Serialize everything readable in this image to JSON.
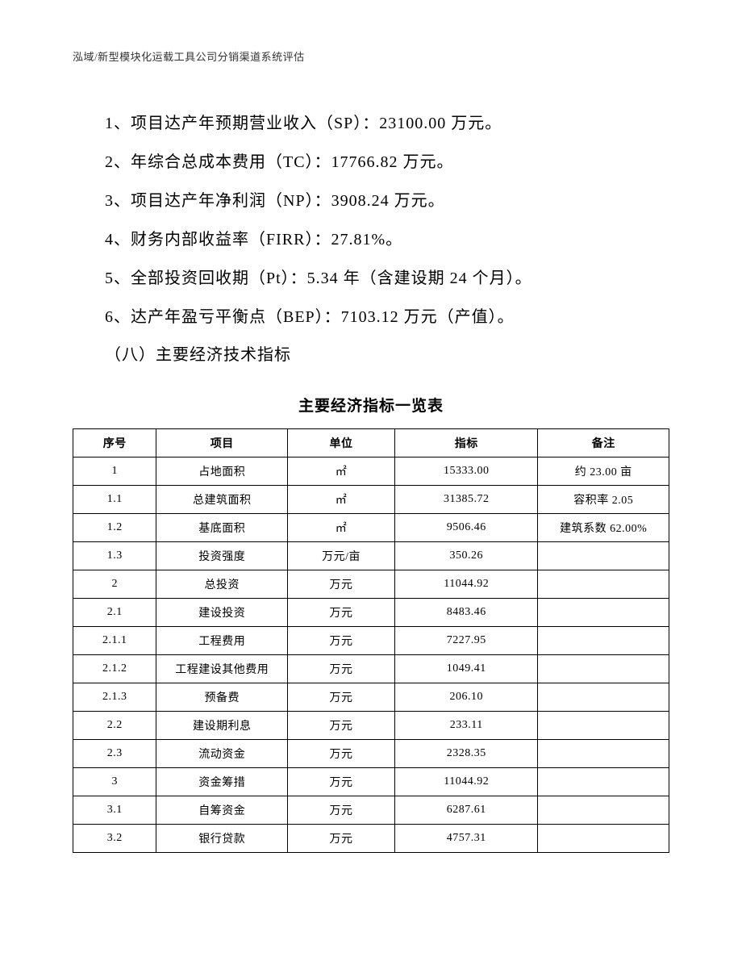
{
  "header": "泓域/新型模块化运载工具公司分销渠道系统评估",
  "paragraphs": {
    "p1": "1、项目达产年预期营业收入（SP）：23100.00 万元。",
    "p2": "2、年综合总成本费用（TC）：17766.82 万元。",
    "p3": "3、项目达产年净利润（NP）：3908.24 万元。",
    "p4": "4、财务内部收益率（FIRR）：27.81%。",
    "p5": "5、全部投资回收期（Pt）：5.34 年（含建设期 24 个月）。",
    "p6": "6、达产年盈亏平衡点（BEP）：7103.12 万元（产值）。"
  },
  "sectionHeading": "（八）主要经济技术指标",
  "tableTitle": "主要经济指标一览表",
  "table": {
    "headers": {
      "seq": "序号",
      "item": "项目",
      "unit": "单位",
      "value": "指标",
      "remark": "备注"
    },
    "rows": [
      {
        "seq": "1",
        "item": "占地面积",
        "unit": "㎡",
        "value": "15333.00",
        "remark": "约 23.00 亩"
      },
      {
        "seq": "1.1",
        "item": "总建筑面积",
        "unit": "㎡",
        "value": "31385.72",
        "remark": "容积率 2.05"
      },
      {
        "seq": "1.2",
        "item": "基底面积",
        "unit": "㎡",
        "value": "9506.46",
        "remark": "建筑系数 62.00%"
      },
      {
        "seq": "1.3",
        "item": "投资强度",
        "unit": "万元/亩",
        "value": "350.26",
        "remark": ""
      },
      {
        "seq": "2",
        "item": "总投资",
        "unit": "万元",
        "value": "11044.92",
        "remark": ""
      },
      {
        "seq": "2.1",
        "item": "建设投资",
        "unit": "万元",
        "value": "8483.46",
        "remark": ""
      },
      {
        "seq": "2.1.1",
        "item": "工程费用",
        "unit": "万元",
        "value": "7227.95",
        "remark": ""
      },
      {
        "seq": "2.1.2",
        "item": "工程建设其他费用",
        "unit": "万元",
        "value": "1049.41",
        "remark": ""
      },
      {
        "seq": "2.1.3",
        "item": "预备费",
        "unit": "万元",
        "value": "206.10",
        "remark": ""
      },
      {
        "seq": "2.2",
        "item": "建设期利息",
        "unit": "万元",
        "value": "233.11",
        "remark": ""
      },
      {
        "seq": "2.3",
        "item": "流动资金",
        "unit": "万元",
        "value": "2328.35",
        "remark": ""
      },
      {
        "seq": "3",
        "item": "资金筹措",
        "unit": "万元",
        "value": "11044.92",
        "remark": ""
      },
      {
        "seq": "3.1",
        "item": "自筹资金",
        "unit": "万元",
        "value": "6287.61",
        "remark": ""
      },
      {
        "seq": "3.2",
        "item": "银行贷款",
        "unit": "万元",
        "value": "4757.31",
        "remark": ""
      }
    ]
  }
}
